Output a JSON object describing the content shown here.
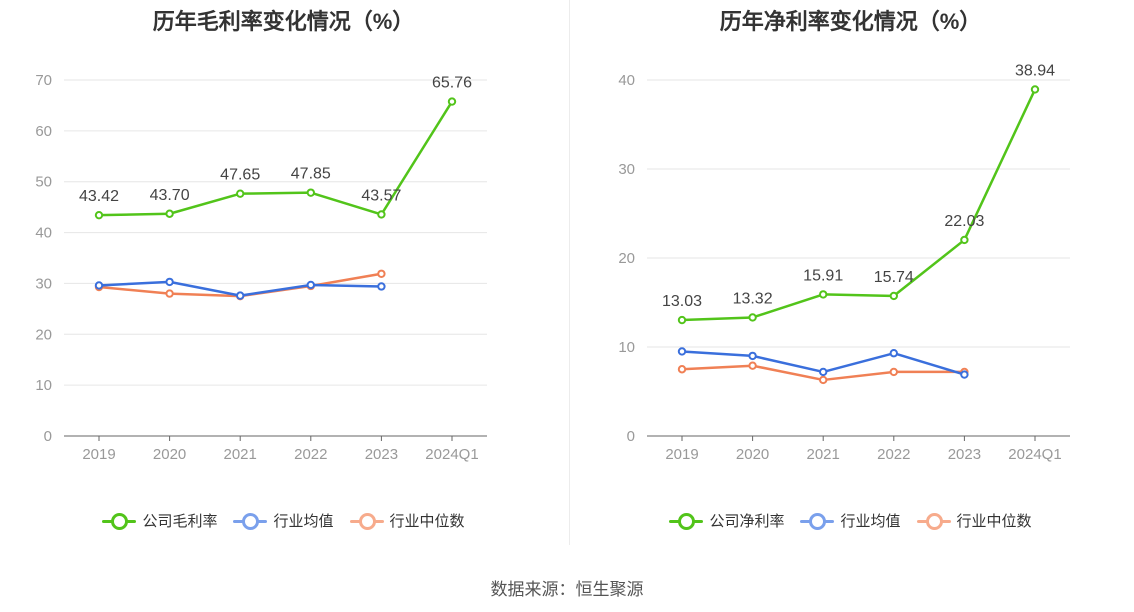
{
  "chart_data": [
    {
      "type": "line",
      "title": "历年毛利率变化情况（%）",
      "categories": [
        "2019",
        "2020",
        "2021",
        "2022",
        "2023",
        "2024Q1"
      ],
      "ylim": [
        0,
        70
      ],
      "yticks": [
        0,
        10,
        20,
        30,
        40,
        50,
        60,
        70
      ],
      "grid": true,
      "legend_position": "bottom",
      "series": [
        {
          "name": "公司毛利率",
          "color": "#52c41a",
          "values": [
            43.42,
            43.7,
            47.65,
            47.85,
            43.57,
            65.76
          ],
          "labels": [
            "43.42",
            "43.70",
            "47.65",
            "47.85",
            "43.57",
            "65.76"
          ]
        },
        {
          "name": "行业均值",
          "color": "#3a6fdc",
          "values": [
            29.6,
            30.3,
            27.6,
            29.7,
            29.4,
            null
          ],
          "labels": []
        },
        {
          "name": "行业中位数",
          "color": "#f08055",
          "values": [
            29.3,
            28.0,
            27.5,
            29.5,
            31.9,
            null
          ],
          "labels": []
        }
      ]
    },
    {
      "type": "line",
      "title": "历年净利率变化情况（%）",
      "categories": [
        "2019",
        "2020",
        "2021",
        "2022",
        "2023",
        "2024Q1"
      ],
      "ylim": [
        0,
        40
      ],
      "yticks": [
        0,
        10,
        20,
        30,
        40
      ],
      "grid": true,
      "legend_position": "bottom",
      "series": [
        {
          "name": "公司净利率",
          "color": "#52c41a",
          "values": [
            13.03,
            13.32,
            15.91,
            15.74,
            22.03,
            38.94
          ],
          "labels": [
            "13.03",
            "13.32",
            "15.91",
            "15.74",
            "22.03",
            "38.94"
          ]
        },
        {
          "name": "行业均值",
          "color": "#3a6fdc",
          "values": [
            9.5,
            9.0,
            7.2,
            9.3,
            6.9,
            null
          ],
          "labels": []
        },
        {
          "name": "行业中位数",
          "color": "#f08055",
          "values": [
            7.5,
            7.9,
            6.3,
            7.2,
            7.2,
            null
          ],
          "labels": []
        }
      ]
    }
  ],
  "legend_colors": {
    "company": "#52c41a",
    "avg": "#7aa0ec",
    "median": "#f7ab8c"
  },
  "source_text": "数据来源：恒生聚源"
}
